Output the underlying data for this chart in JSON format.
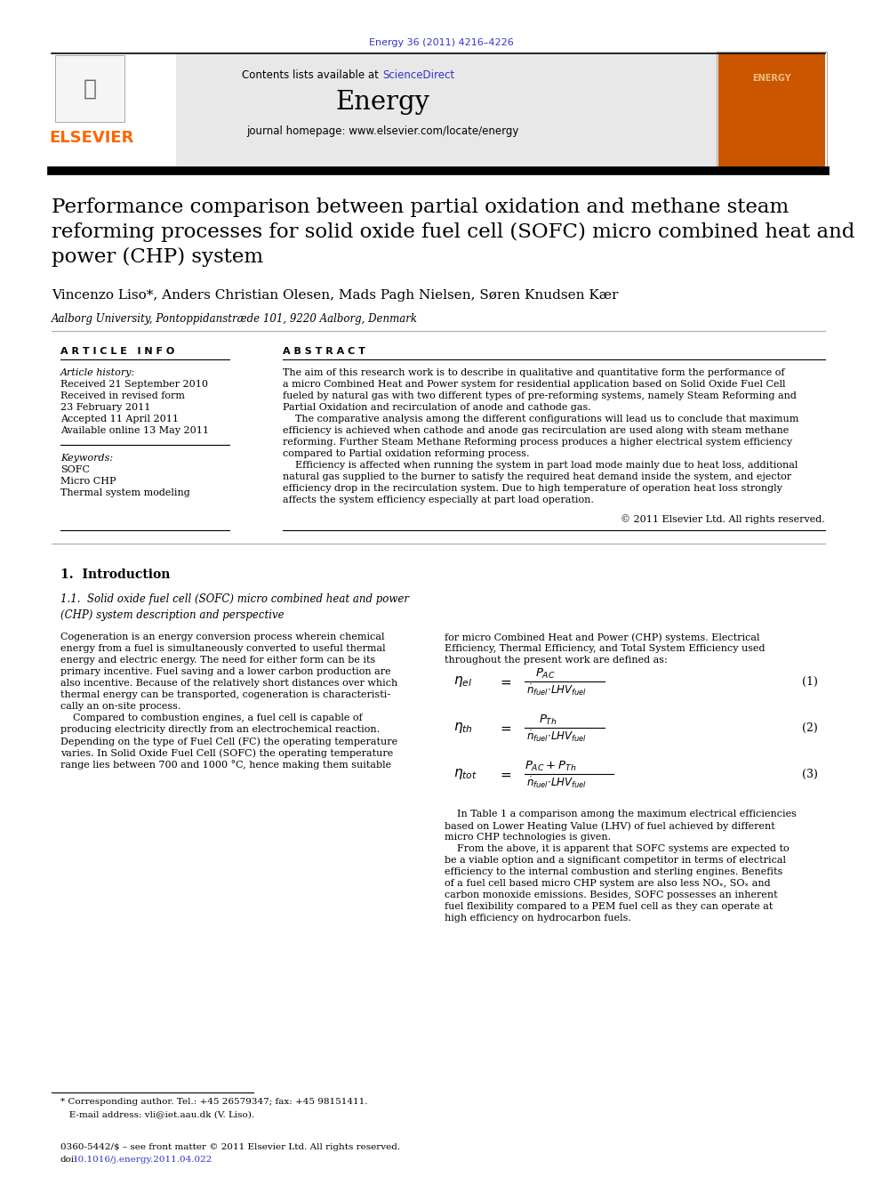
{
  "journal_ref": "Energy 36 (2011) 4216–4226",
  "journal_ref_color": "#3333cc",
  "header_bg": "#e8e8e8",
  "contents_text": "Contents lists available at ",
  "sciencedirect_text": "ScienceDirect",
  "sciencedirect_color": "#3333cc",
  "journal_title": "Energy",
  "journal_homepage": "journal homepage: www.elsevier.com/locate/energy",
  "paper_title": "Performance comparison between partial oxidation and methane steam\nreforming processes for solid oxide fuel cell (SOFC) micro combined heat and\npower (CHP) system",
  "authors": "Vincenzo Liso*, Anders Christian Olesen, Mads Pagh Nielsen, Søren Knudsen Kær",
  "affiliation": "Aalborg University, Pontoppidanstræde 101, 9220 Aalborg, Denmark",
  "article_info_header": "A R T I C L E   I N F O",
  "abstract_header": "A B S T R A C T",
  "article_history_label": "Article history:",
  "received1": "Received 21 September 2010",
  "revised_label": "Received in revised form",
  "revised_date": "23 February 2011",
  "accepted": "Accepted 11 April 2011",
  "available": "Available online 13 May 2011",
  "keywords_label": "Keywords:",
  "keyword1": "SOFC",
  "keyword2": "Micro CHP",
  "keyword3": "Thermal system modeling",
  "copyright": "© 2011 Elsevier Ltd. All rights reserved.",
  "section1_header": "1.  Introduction",
  "subsection_header": "1.1.  Solid oxide fuel cell (SOFC) micro combined heat and power\n(CHP) system description and perspective",
  "eq1_label": "(1)",
  "eq2_label": "(2)",
  "eq3_label": "(3)",
  "footnote_line1": "* Corresponding author. Tel.: +45 26579347; fax: +45 98151411.",
  "footnote_line2": "   E-mail address: vli@iet.aau.dk (V. Liso).",
  "footer_line1": "0360-5442/$ – see front matter © 2011 Elsevier Ltd. All rights reserved.",
  "footer_doi_prefix": "doi:",
  "footer_doi_link": "10.1016/j.energy.2011.04.022",
  "footer_doi_color": "#3333cc",
  "elsevier_color": "#ff6600",
  "header_orange_color": "#cc5500",
  "abstract_lines": [
    "The aim of this research work is to describe in qualitative and quantitative form the performance of",
    "a micro Combined Heat and Power system for residential application based on Solid Oxide Fuel Cell",
    "fueled by natural gas with two different types of pre-reforming systems, namely Steam Reforming and",
    "Partial Oxidation and recirculation of anode and cathode gas.",
    "    The comparative analysis among the different configurations will lead us to conclude that maximum",
    "efficiency is achieved when cathode and anode gas recirculation are used along with steam methane",
    "reforming. Further Steam Methane Reforming process produces a higher electrical system efficiency",
    "compared to Partial oxidation reforming process.",
    "    Efficiency is affected when running the system in part load mode mainly due to heat loss, additional",
    "natural gas supplied to the burner to satisfy the required heat demand inside the system, and ejector",
    "efficiency drop in the recirculation system. Due to high temperature of operation heat loss strongly",
    "affects the system efficiency especially at part load operation."
  ],
  "intro_left_lines": [
    "Cogeneration is an energy conversion process wherein chemical",
    "energy from a fuel is simultaneously converted to useful thermal",
    "energy and electric energy. The need for either form can be its",
    "primary incentive. Fuel saving and a lower carbon production are",
    "also incentive. Because of the relatively short distances over which",
    "thermal energy can be transported, cogeneration is characteristi-",
    "cally an on-site process.",
    "    Compared to combustion engines, a fuel cell is capable of",
    "producing electricity directly from an electrochemical reaction.",
    "Depending on the type of Fuel Cell (FC) the operating temperature",
    "varies. In Solid Oxide Fuel Cell (SOFC) the operating temperature",
    "range lies between 700 and 1000 °C, hence making them suitable"
  ],
  "intro_right_lines": [
    "for micro Combined Heat and Power (CHP) systems. Electrical",
    "Efficiency, Thermal Efficiency, and Total System Efficiency used",
    "throughout the present work are defined as:"
  ],
  "intro_right2_lines": [
    "    In Table 1 a comparison among the maximum electrical efficiencies",
    "based on Lower Heating Value (LHV) of fuel achieved by different",
    "micro CHP technologies is given.",
    "    From the above, it is apparent that SOFC systems are expected to",
    "be a viable option and a significant competitor in terms of electrical",
    "efficiency to the internal combustion and sterling engines. Benefits",
    "of a fuel cell based micro CHP system are also less NOₓ, SOₓ and",
    "carbon monoxide emissions. Besides, SOFC possesses an inherent",
    "fuel flexibility compared to a PEM fuel cell as they can operate at",
    "high efficiency on hydrocarbon fuels."
  ]
}
